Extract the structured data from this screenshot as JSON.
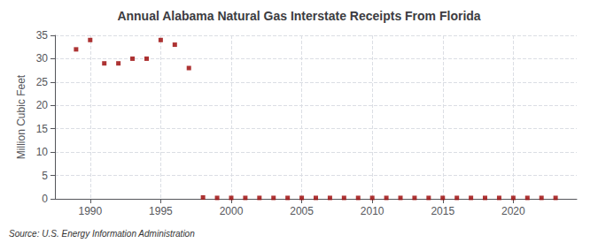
{
  "chart_data": {
    "type": "scatter",
    "title": "Annual Alabama Natural Gas Interstate Receipts From Florida",
    "ylabel": "Million Cubic Feet",
    "source": "Source: U.S. Energy Information Administration",
    "x": [
      1989,
      1990,
      1991,
      1992,
      1993,
      1994,
      1995,
      1996,
      1997,
      1998,
      1999,
      2000,
      2001,
      2002,
      2003,
      2004,
      2005,
      2006,
      2007,
      2008,
      2009,
      2010,
      2011,
      2012,
      2013,
      2014,
      2015,
      2016,
      2017,
      2018,
      2019,
      2020,
      2021,
      2022,
      2023
    ],
    "values": [
      32,
      34,
      29,
      29,
      30,
      30,
      34,
      33,
      28,
      0.3,
      0.2,
      0.2,
      0.2,
      0.2,
      0.2,
      0.2,
      0.2,
      0.2,
      0.2,
      0.2,
      0.2,
      0.2,
      0.2,
      0.2,
      0.2,
      0.2,
      0.2,
      0.2,
      0.2,
      0.2,
      0.2,
      0.2,
      0.2,
      0.2,
      0.2
    ],
    "color": "#990000",
    "marker": "square",
    "xlim": [
      1987.5,
      2024.5
    ],
    "xticks": [
      1990,
      1995,
      2000,
      2005,
      2010,
      2015,
      2020
    ],
    "ylim": [
      0,
      35
    ],
    "yticks": [
      0,
      5,
      10,
      15,
      20,
      25,
      30,
      35
    ],
    "grid": true
  }
}
